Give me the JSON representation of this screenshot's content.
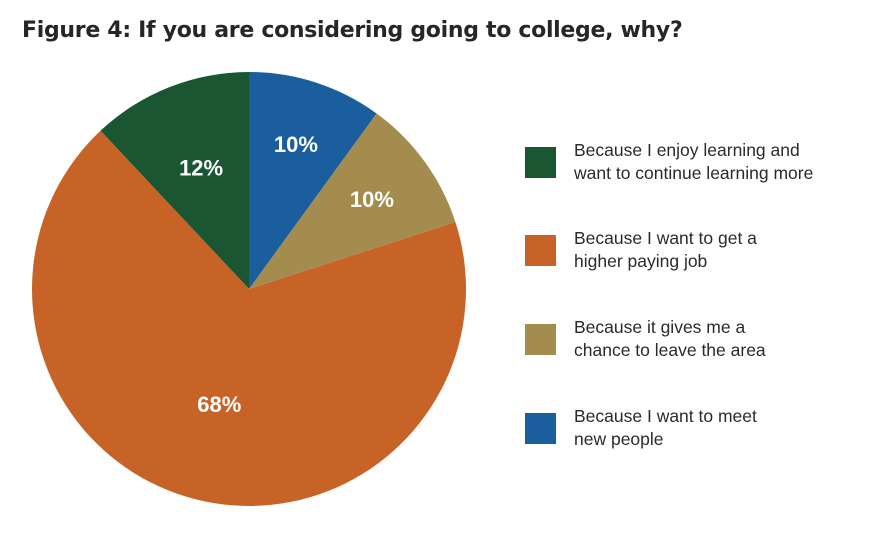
{
  "chart_data": {
    "type": "pie",
    "title": "Figure 4: If you are considering going to college, why?",
    "categories": [
      "Because I enjoy learning and\nwant to continue learning more",
      "Because I want to get a\nhigher paying job",
      "Because it gives me a\nchance to leave the area",
      "Because I want to meet\nnew people"
    ],
    "values": [
      12,
      68,
      10,
      10
    ],
    "value_labels": [
      "12%",
      "68%",
      "10%",
      "10%"
    ],
    "colors": [
      "#1b5633",
      "#c76327",
      "#a48c4f",
      "#1b5e9d"
    ],
    "start_angle_deg": 0,
    "direction": "counterclockwise-from-top",
    "legend_position": "right"
  }
}
